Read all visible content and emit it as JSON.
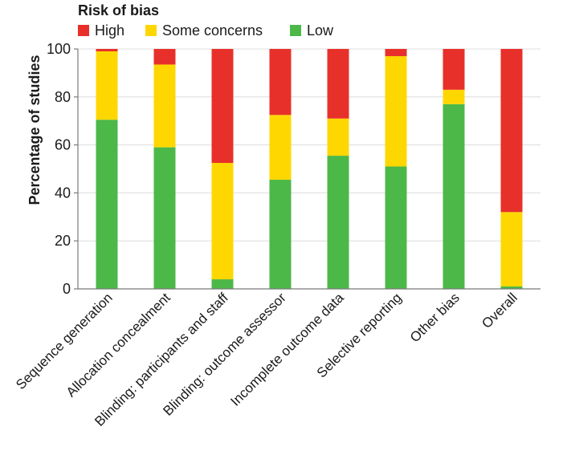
{
  "chart_data": {
    "type": "bar",
    "stacked": true,
    "legend_title": "Risk of bias",
    "legend_position": "top-left",
    "ylabel": "Percentage of studies",
    "xlabel": "",
    "ylim": [
      0,
      100
    ],
    "yticks": [
      "0",
      "20",
      "40",
      "60",
      "80",
      "100"
    ],
    "categories": [
      "Sequence generation",
      "Allocation concealment",
      "Blinding: participants and staff",
      "Blinding: outcome assessor",
      "Incomplete outcome data",
      "Selective reporting",
      "Other bias",
      "Overall"
    ],
    "series": [
      {
        "name": "Low",
        "color": "#4cb848",
        "values": [
          70.5,
          59,
          4,
          45.5,
          55.5,
          51,
          77,
          1
        ]
      },
      {
        "name": "Some concerns",
        "color": "#ffd700",
        "values": [
          28.5,
          34.5,
          48.5,
          27,
          15.5,
          46,
          6,
          31
        ]
      },
      {
        "name": "High",
        "color": "#e8302a",
        "values": [
          1,
          6.5,
          47.5,
          27.5,
          29,
          3,
          17,
          68
        ]
      }
    ],
    "legend_order": [
      "High",
      "Some concerns",
      "Low"
    ]
  }
}
